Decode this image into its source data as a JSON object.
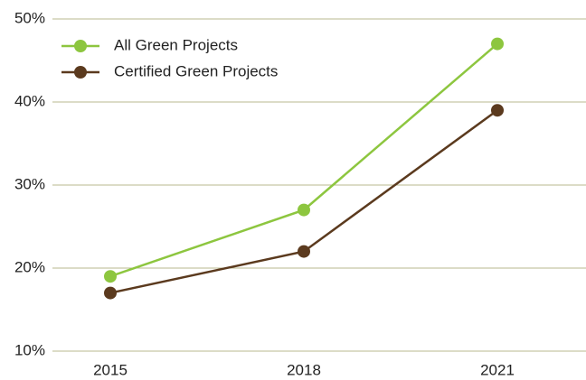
{
  "chart_data": {
    "type": "line",
    "categories": [
      "2015",
      "2018",
      "2021"
    ],
    "series": [
      {
        "name": "All Green Projects",
        "color": "#8dc63f",
        "values": [
          19,
          27,
          47
        ]
      },
      {
        "name": "Certified Green Projects",
        "color": "#5b3a1e",
        "values": [
          17,
          22,
          39
        ]
      }
    ],
    "ylim": [
      10,
      50
    ],
    "yticks": [
      {
        "value": 10,
        "label": "10%"
      },
      {
        "value": 20,
        "label": "20%"
      },
      {
        "value": 30,
        "label": "30%"
      },
      {
        "value": 40,
        "label": "40%"
      },
      {
        "value": 50,
        "label": "50%"
      }
    ],
    "grid": true,
    "legend": "upper left"
  }
}
